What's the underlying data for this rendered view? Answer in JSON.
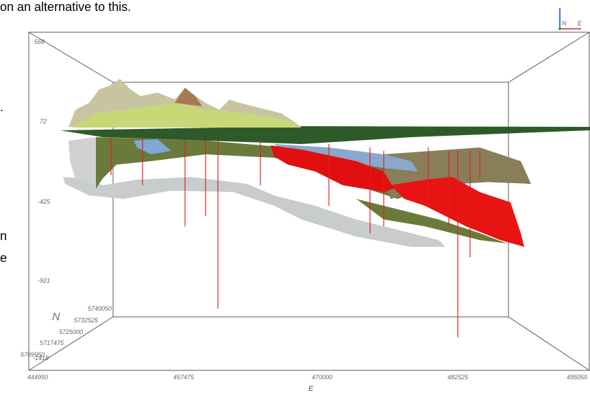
{
  "caption": "on an alternative to this.",
  "margin_fragments": [
    ".",
    "n",
    "e"
  ],
  "z_axis": {
    "labels": [
      "568",
      "72",
      "-425",
      "-921",
      "-1418"
    ]
  },
  "n_axis": {
    "title": "N",
    "labels": [
      "5740050",
      "5732525",
      "5725000",
      "5717475",
      "5709950"
    ]
  },
  "e_axis": {
    "title": "E",
    "labels": [
      "444950",
      "457475",
      "470000",
      "482525",
      "495050"
    ]
  },
  "compass": {
    "north": "N",
    "east": "E"
  }
}
